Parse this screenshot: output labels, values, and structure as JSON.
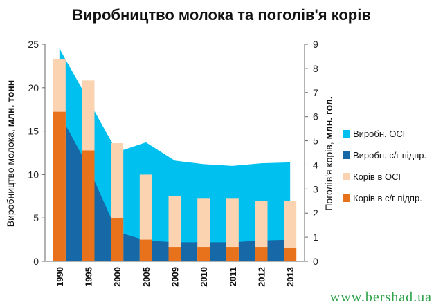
{
  "chart_data": {
    "type": "bar",
    "title": "Виробництво молока та поголів'я корів",
    "categories": [
      "1990",
      "1995",
      "2000",
      "2005",
      "2009",
      "2010",
      "2011",
      "2012",
      "2013"
    ],
    "ylabel_left": {
      "normal": "Виробництво молока, ",
      "bold": "млн. тонн"
    },
    "ylabel_right": {
      "normal": "Поголів'я корів, ",
      "bold": "млн. гол."
    },
    "ylim_left": [
      0,
      25
    ],
    "yticks_left": [
      0,
      5,
      10,
      15,
      20,
      25
    ],
    "ylim_right": [
      0,
      9
    ],
    "yticks_right": [
      0,
      1,
      2,
      3,
      4,
      5,
      6,
      7,
      8,
      9
    ],
    "grid": false,
    "legend_position": "right",
    "area_series": [
      {
        "name": "Виробн. ОСГ",
        "color": "#00c0ef",
        "axis": "left",
        "values": [
          24.5,
          18.6,
          12.6,
          13.7,
          11.6,
          11.2,
          11.0,
          11.3,
          11.4
        ]
      },
      {
        "name": "Виробн. с/г підпр.",
        "color": "#1669a6",
        "axis": "left",
        "values": [
          17.0,
          10.9,
          3.4,
          2.4,
          2.2,
          2.2,
          2.2,
          2.4,
          2.5
        ]
      }
    ],
    "bar_series": [
      {
        "name": "Корів в ОСГ",
        "color": "#fbd3b1",
        "axis": "right",
        "values": [
          8.4,
          7.5,
          4.9,
          3.6,
          2.7,
          2.6,
          2.6,
          2.5,
          2.5
        ]
      },
      {
        "name": "Корів в с/г підпр.",
        "color": "#e8721b",
        "axis": "right",
        "values": [
          6.2,
          4.6,
          1.8,
          0.9,
          0.6,
          0.6,
          0.6,
          0.6,
          0.55
        ]
      }
    ]
  },
  "watermark": "www.bershad.ua"
}
